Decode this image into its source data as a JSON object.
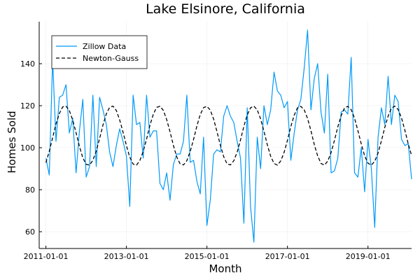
{
  "chart_data": {
    "type": "line",
    "title": "Lake Elsinore, California",
    "xlabel": "Month",
    "ylabel": "Homes Sold",
    "x_start": "2011-01-01",
    "x_interval": "monthly",
    "xlim": [
      "2010-11-01",
      "2020-02-01"
    ],
    "ylim": [
      52,
      160
    ],
    "x_ticks": [
      "2011-01-01",
      "2013-01-01",
      "2015-01-01",
      "2017-01-01",
      "2019-01-01"
    ],
    "y_ticks": [
      60,
      80,
      100,
      120,
      140
    ],
    "grid": true,
    "legend_position": "top-left",
    "series": [
      {
        "name": "Zillow Data",
        "color": "#009af9",
        "style": "solid",
        "values": [
          95,
          87,
          142,
          103,
          124,
          125,
          130,
          107,
          114,
          88,
          108,
          123,
          86,
          91,
          125,
          91,
          124,
          118,
          111,
          98,
          91,
          101,
          109,
          103,
          96,
          72,
          125,
          111,
          112,
          95,
          125,
          105,
          108,
          108,
          83,
          80,
          88,
          75,
          92,
          97,
          97,
          103,
          125,
          93,
          94,
          84,
          78,
          105,
          63,
          75,
          97,
          99,
          98,
          115,
          120,
          115,
          112,
          103,
          95,
          64,
          119,
          72,
          55,
          105,
          90,
          120,
          111,
          118,
          136,
          127,
          125,
          119,
          122,
          94,
          107,
          118,
          123,
          138,
          156,
          118,
          133,
          140,
          117,
          107,
          135,
          88,
          89,
          95,
          117,
          118,
          116,
          143,
          88,
          86,
          100,
          79,
          104,
          90,
          62,
          105,
          119,
          111,
          134,
          111,
          125,
          122,
          104,
          101,
          102,
          85
        ]
      },
      {
        "name": "Newton-Gauss",
        "color": "#000000",
        "style": "dashed",
        "values": [
          92.9,
          98.3,
          104.8,
          111.3,
          116.3,
          119.4,
          119.8,
          117.6,
          113.1,
          107.1,
          100.6,
          95.2,
          92.1,
          91.7,
          94.0,
          98.4,
          104.4,
          110.8,
          116.1,
          119.2,
          119.8,
          117.7,
          113.2,
          107.4,
          101.0,
          95.5,
          92.2,
          91.7,
          93.9,
          98.3,
          104.1,
          110.7,
          115.9,
          119.2,
          119.7,
          117.8,
          113.4,
          107.6,
          101.1,
          95.6,
          92.3,
          91.8,
          93.8,
          98.2,
          103.9,
          110.4,
          115.8,
          119.1,
          119.7,
          117.9,
          113.6,
          107.6,
          101.2,
          95.7,
          92.3,
          91.8,
          93.8,
          97.9,
          103.7,
          110.2,
          115.6,
          119.0,
          119.8,
          118.0,
          113.7,
          107.8,
          101.4,
          95.9,
          92.5,
          91.7,
          93.7,
          97.8,
          103.6,
          110.1,
          115.5,
          119.0,
          119.7,
          118.0,
          113.9,
          108.1,
          101.5,
          96.1,
          92.5,
          91.7,
          93.6,
          97.7,
          103.5,
          109.9,
          115.3,
          118.9,
          119.7,
          118.1,
          114.0,
          108.1,
          101.8,
          96.1,
          92.6,
          91.7,
          93.5,
          97.5,
          103.3,
          109.7,
          115.1,
          118.8,
          119.8,
          118.2,
          114.1,
          108.3,
          101.8,
          96.3
        ]
      }
    ]
  }
}
